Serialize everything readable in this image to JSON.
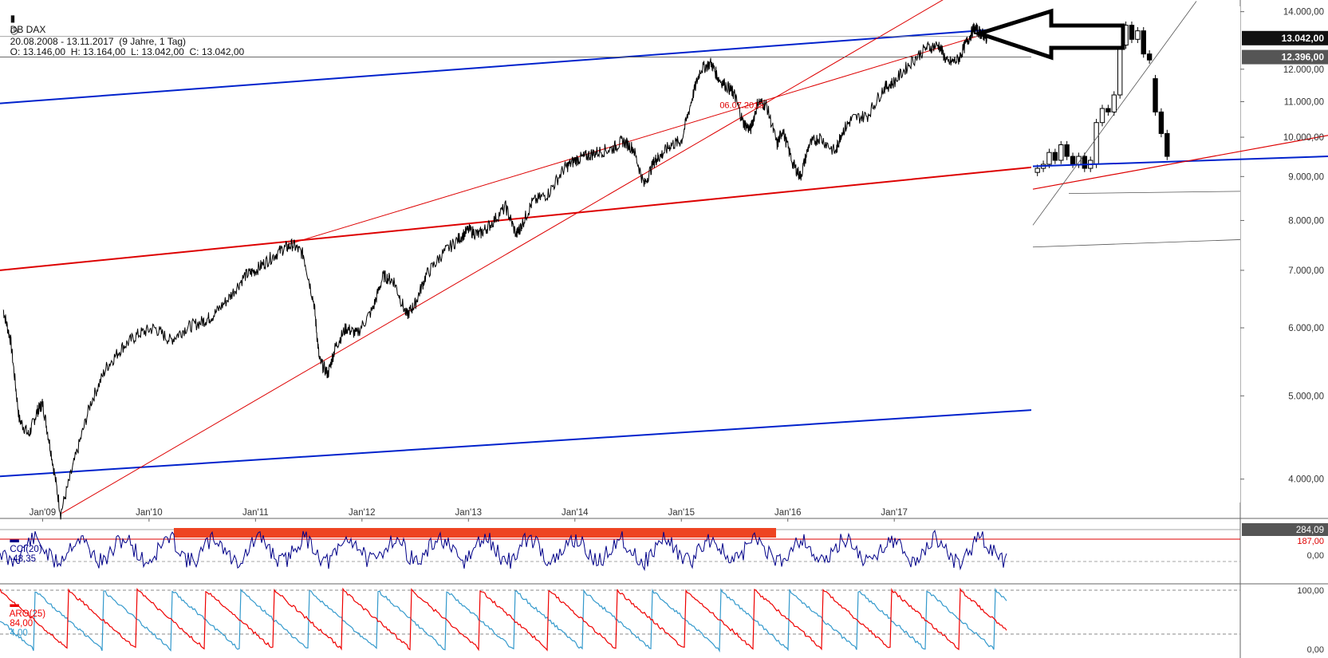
{
  "header": {
    "symbol": "DB DAX",
    "ohlc": "O: 13.146,00  H: 13.164,00  L: 13.042,00  C: 13.042,00",
    "range": "20.08.2008 - 13.11.2017  (9 Jahre, 1 Tag)"
  },
  "chart_data": {
    "type": "line",
    "title": "DB DAX",
    "scale": "log",
    "ylim": [
      3600,
      14200
    ],
    "x_tick_labels": [
      "Jan'09",
      "Jan'10",
      "Jan'11",
      "Jan'12",
      "Jan'13",
      "Jan'14",
      "Jan'15",
      "Jan'16",
      "Jan'17"
    ],
    "y_tick_labels": [
      "14.000,00",
      "12.000,00",
      "11.000,00",
      "10.000,00",
      "9.000,00",
      "8.000,00",
      "7.000,00",
      "6.000,00",
      "5.000,00",
      "4.000,00"
    ],
    "y_tick_values": [
      14000,
      12000,
      11000,
      10000,
      9000,
      8000,
      7000,
      6000,
      5000,
      4000
    ],
    "price_badges": [
      {
        "label": "13.042,00",
        "value": 13042,
        "bg": "#111111",
        "fg": "#ffffff"
      },
      {
        "label": "12.396,00",
        "value": 12396,
        "bg": "#555555",
        "fg": "#ffffff"
      }
    ],
    "annotation": {
      "text": "06.07.2015",
      "color": "#dd0000",
      "date": 2015.51,
      "value": 10900
    },
    "series": [
      {
        "color": "#000000",
        "x": [
          2008.63,
          2008.7,
          2008.78,
          2008.87,
          2008.95,
          2009.0,
          2009.08,
          2009.17,
          2009.3,
          2009.45,
          2009.6,
          2009.75,
          2009.9,
          2010.05,
          2010.2,
          2010.35,
          2010.5,
          2010.6,
          2010.75,
          2010.9,
          2011.0,
          2011.12,
          2011.25,
          2011.35,
          2011.45,
          2011.55,
          2011.6,
          2011.68,
          2011.75,
          2011.85,
          2011.95,
          2012.1,
          2012.2,
          2012.3,
          2012.42,
          2012.5,
          2012.6,
          2012.75,
          2012.9,
          2013.0,
          2013.1,
          2013.2,
          2013.35,
          2013.45,
          2013.5,
          2013.6,
          2013.75,
          2013.9,
          2014.0,
          2014.1,
          2014.2,
          2014.35,
          2014.45,
          2014.55,
          2014.65,
          2014.75,
          2014.8,
          2014.9,
          2015.0,
          2015.1,
          2015.18,
          2015.28,
          2015.35,
          2015.45,
          2015.5,
          2015.58,
          2015.65,
          2015.72,
          2015.8,
          2015.9,
          2015.95,
          2016.05,
          2016.12,
          2016.2,
          2016.3,
          2016.45,
          2016.5,
          2016.6,
          2016.75,
          2016.9,
          2017.0,
          2017.15,
          2017.3,
          2017.42,
          2017.5,
          2017.6,
          2017.68,
          2017.75,
          2017.82,
          2017.86,
          2017.87
        ],
        "y": [
          6300,
          5800,
          4700,
          4500,
          4800,
          4900,
          4300,
          3650,
          4200,
          4900,
          5400,
          5700,
          5900,
          6000,
          5800,
          6000,
          6100,
          6200,
          6500,
          6900,
          7000,
          7200,
          7400,
          7500,
          7300,
          6400,
          5500,
          5300,
          5700,
          6000,
          5900,
          6300,
          6900,
          6800,
          6200,
          6400,
          6900,
          7300,
          7600,
          7800,
          7700,
          7900,
          8300,
          7700,
          7900,
          8400,
          8600,
          9200,
          9400,
          9500,
          9600,
          9700,
          9900,
          9700,
          8800,
          9400,
          9500,
          9800,
          9900,
          11100,
          12000,
          12200,
          11700,
          11400,
          11200,
          10400,
          10200,
          11000,
          10900,
          9800,
          10200,
          9300,
          9000,
          9800,
          10000,
          9600,
          10100,
          10500,
          10600,
          11400,
          11600,
          12200,
          12700,
          12800,
          12200,
          12300,
          12900,
          13400,
          13200,
          13100,
          13042
        ]
      }
    ],
    "lines": [
      {
        "color": "#0022cc",
        "width": 2,
        "from": [
          2008.6,
          10950
        ],
        "to": [
          2017.95,
          13350
        ]
      },
      {
        "color": "#0022cc",
        "width": 2,
        "from": [
          2008.6,
          4030
        ],
        "to": [
          2020.25,
          4990
        ]
      },
      {
        "color": "#dd0000",
        "width": 2,
        "from": [
          2008.6,
          7000
        ],
        "to": [
          2018.65,
          9320
        ]
      },
      {
        "color": "#dd0000",
        "width": 1,
        "from": [
          2009.18,
          3650
        ],
        "to": [
          2017.6,
          14800
        ]
      },
      {
        "color": "#dd0000",
        "width": 1,
        "from": [
          2011.3,
          7500
        ],
        "to": [
          2017.95,
          13300
        ]
      },
      {
        "color": "#555555",
        "width": 0.8,
        "from": [
          2008.6,
          12396
        ],
        "to": [
          2020.25,
          12396
        ]
      },
      {
        "color": "#888888",
        "width": 0.8,
        "from": [
          2008.6,
          13100
        ],
        "to": [
          2020.25,
          13100
        ]
      }
    ]
  },
  "inset": {
    "candles": [
      {
        "o": 9100,
        "c": 9200
      },
      {
        "o": 9200,
        "c": 9300
      },
      {
        "o": 9300,
        "c": 9600
      },
      {
        "o": 9600,
        "c": 9400
      },
      {
        "o": 9400,
        "c": 9800
      },
      {
        "o": 9800,
        "c": 9500
      },
      {
        "o": 9500,
        "c": 9300
      },
      {
        "o": 9300,
        "c": 9500
      },
      {
        "o": 9500,
        "c": 9200
      },
      {
        "o": 9200,
        "c": 9400
      },
      {
        "o": 9300,
        "c": 10400
      },
      {
        "o": 10400,
        "c": 10800
      },
      {
        "o": 10800,
        "c": 10700
      },
      {
        "o": 10700,
        "c": 11200
      },
      {
        "o": 11200,
        "c": 12800
      },
      {
        "o": 12800,
        "c": 13500
      },
      {
        "o": 13500,
        "c": 13000
      },
      {
        "o": 13000,
        "c": 13300
      },
      {
        "o": 13300,
        "c": 12500
      },
      {
        "o": 12500,
        "c": 12300
      },
      {
        "o": 11700,
        "c": 10700
      },
      {
        "o": 10700,
        "c": 10100
      },
      {
        "o": 10100,
        "c": 9500
      }
    ]
  },
  "cci": {
    "label": "CCI(20)",
    "value": "-48,35",
    "badge": "284,09",
    "level_hi": "187,00",
    "level_zero": "0,00"
  },
  "aroon": {
    "label": "ARO(25)",
    "up": "84,00",
    "down": "4,00",
    "level_hi": "100,00",
    "level_lo": "0,00",
    "colors": {
      "up": "#ee0000",
      "down": "#3399cc"
    }
  },
  "colors": {
    "accent_blue": "#0022cc",
    "accent_red": "#dd0000",
    "arrow": "#000000"
  }
}
